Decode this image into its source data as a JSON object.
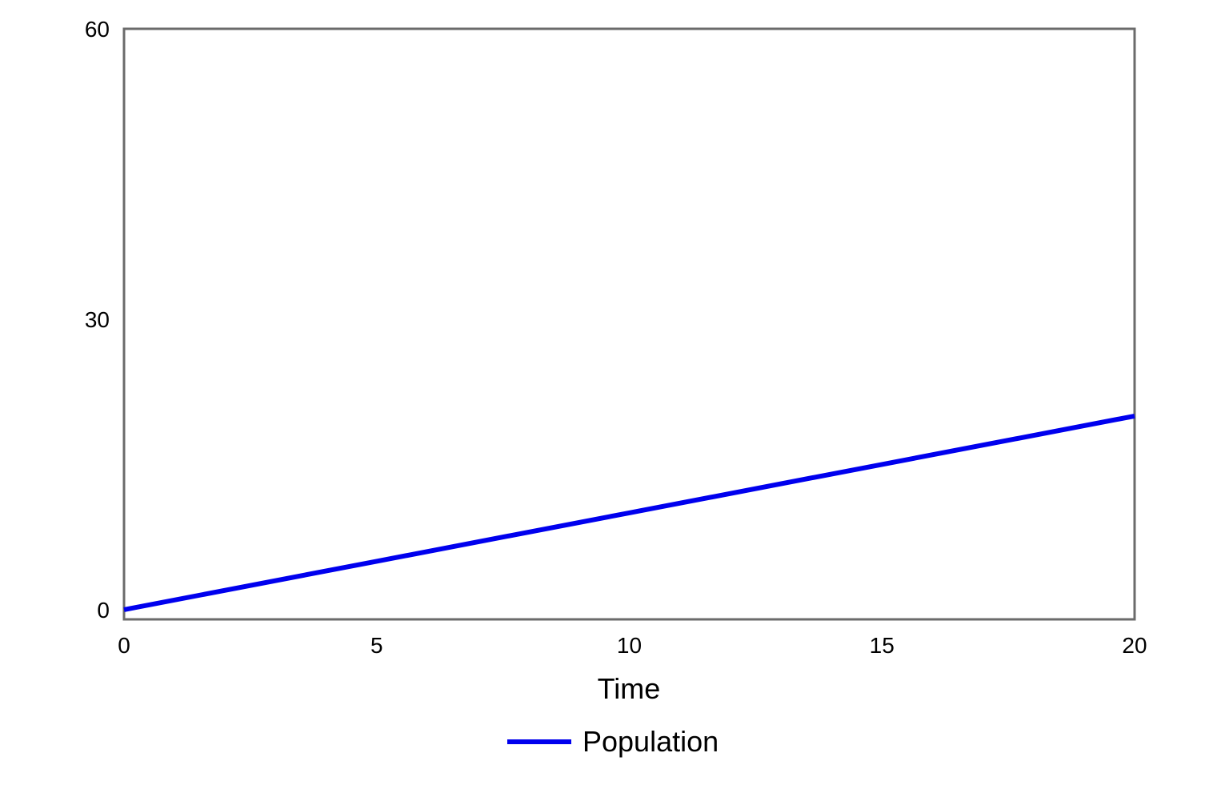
{
  "chart_data": {
    "type": "line",
    "title": "",
    "xlabel": "Time",
    "ylabel": "",
    "xlim": [
      0,
      20
    ],
    "ylim": [
      -1,
      60
    ],
    "xticks": [
      "0",
      "5",
      "10",
      "15",
      "20"
    ],
    "yticks": [
      "0",
      "30",
      "60"
    ],
    "grid": false,
    "legend_position": "bottom-center",
    "series": [
      {
        "name": "Population",
        "color": "#0000ee",
        "x": [
          0,
          5,
          10,
          15,
          20
        ],
        "y": [
          0,
          5,
          10,
          15,
          20
        ]
      }
    ]
  }
}
